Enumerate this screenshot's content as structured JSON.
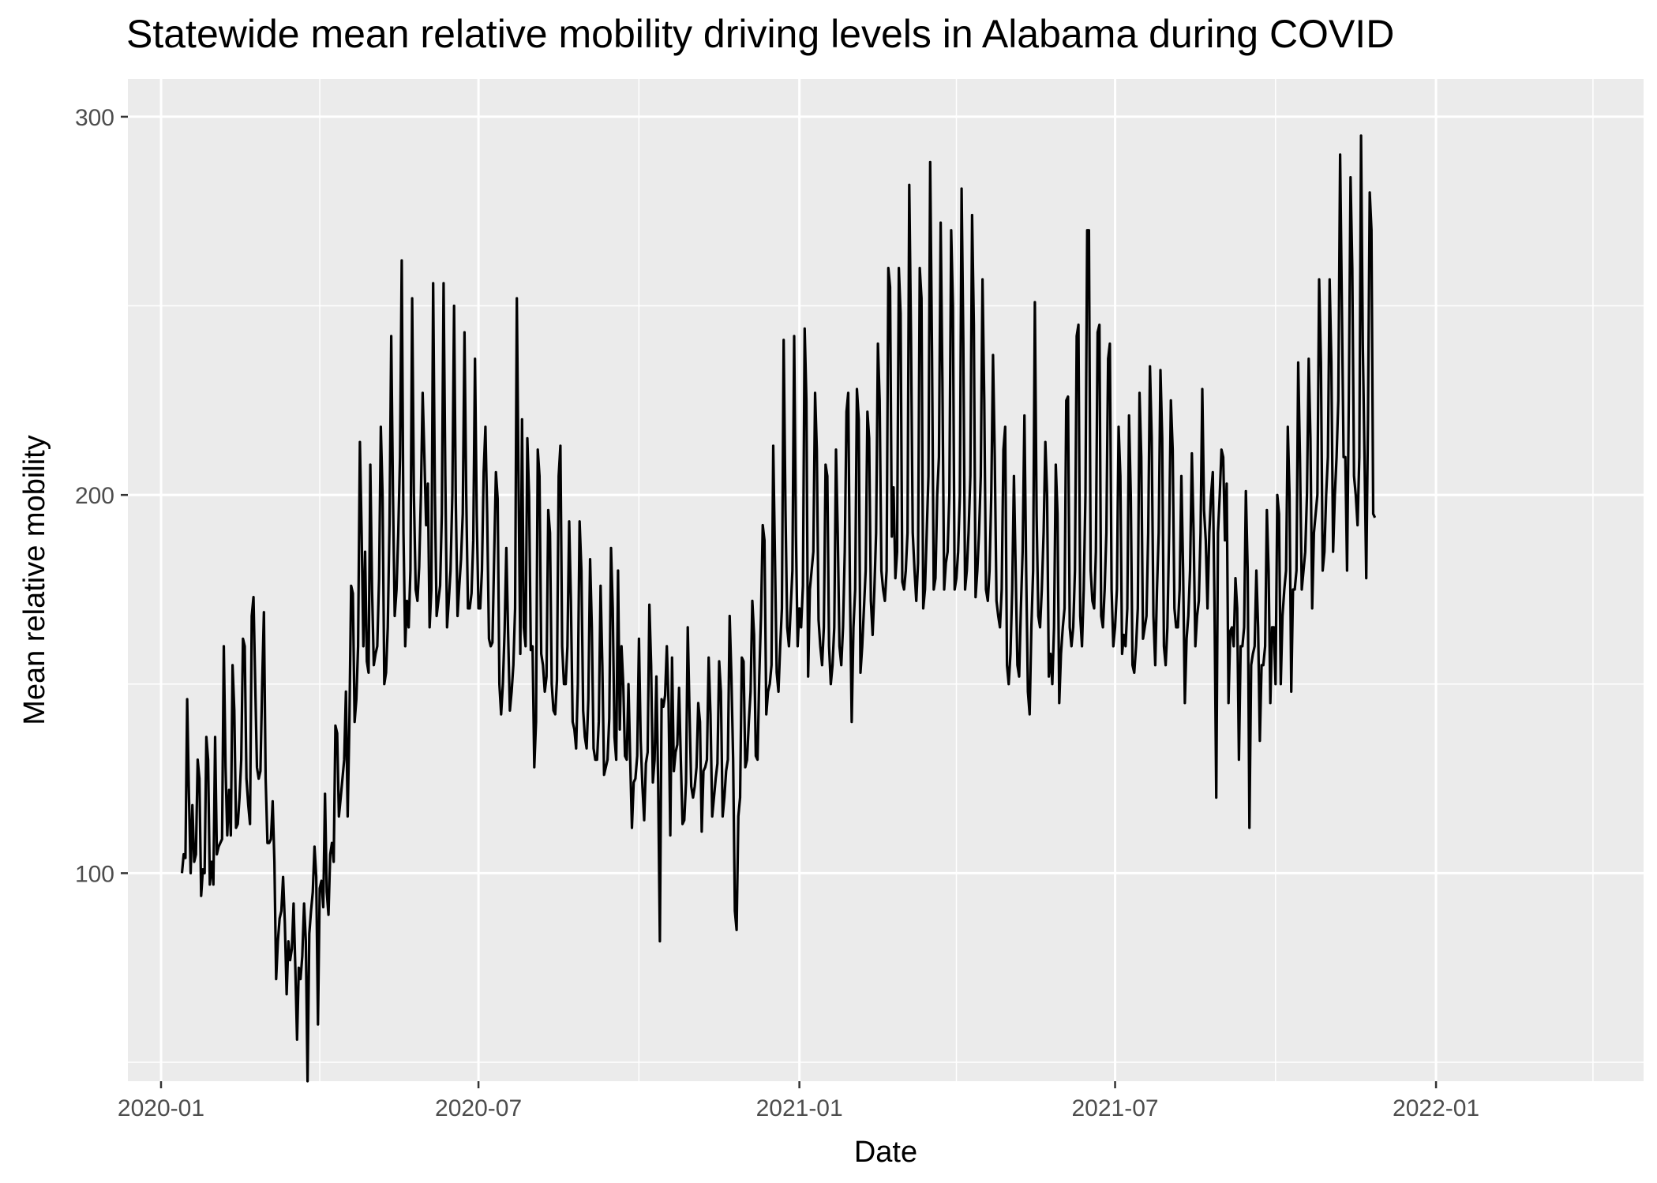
{
  "chart_data": {
    "type": "line",
    "title": "Statewide mean relative mobility driving levels in Alabama during COVID",
    "xlabel": "Date",
    "ylabel": "Mean relative mobility",
    "xlim": [
      "2019-12-13",
      "2022-04-30"
    ],
    "ylim": [
      45,
      310
    ],
    "x_major_ticks": [
      {
        "date": "2020-01-01",
        "label": "2020-01"
      },
      {
        "date": "2020-07-01",
        "label": "2020-07"
      },
      {
        "date": "2021-01-01",
        "label": "2021-01"
      },
      {
        "date": "2021-07-01",
        "label": "2021-07"
      },
      {
        "date": "2022-01-01",
        "label": "2022-01"
      }
    ],
    "x_minor_ticks": [
      "2020-04-01",
      "2020-10-01",
      "2021-04-01",
      "2021-10-01",
      "2022-04-01"
    ],
    "y_major_ticks": [
      100,
      200,
      300
    ],
    "y_minor_ticks": [
      50,
      150,
      250
    ],
    "grid": true,
    "legend": "none",
    "series": [
      {
        "color": "#000000",
        "start_date": "2020-01-13",
        "step": "1 day",
        "values": [
          100,
          105,
          104,
          146,
          121,
          100,
          118,
          103,
          105,
          130,
          125,
          94,
          101,
          100,
          136,
          130,
          97,
          103,
          97,
          136,
          105,
          107,
          108,
          109,
          160,
          128,
          110,
          122,
          110,
          155,
          143,
          112,
          113,
          120,
          130,
          162,
          160,
          125,
          118,
          113,
          168,
          173,
          150,
          128,
          125,
          127,
          150,
          169,
          125,
          108,
          108,
          109,
          119,
          103,
          72,
          82,
          88,
          90,
          99,
          87,
          68,
          82,
          77,
          80,
          92,
          75,
          56,
          75,
          72,
          78,
          92,
          82,
          45,
          84,
          90,
          95,
          107,
          99,
          60,
          96,
          98,
          91,
          121,
          95,
          89,
          105,
          108,
          103,
          139,
          137,
          115,
          120,
          125,
          130,
          148,
          115,
          140,
          176,
          174,
          140,
          146,
          160,
          214,
          190,
          160,
          185,
          156,
          153,
          208,
          175,
          155,
          158,
          160,
          178,
          218,
          200,
          150,
          153,
          165,
          192,
          242,
          200,
          168,
          175,
          190,
          210,
          262,
          190,
          160,
          172,
          165,
          180,
          252,
          200,
          175,
          172,
          181,
          200,
          227,
          210,
          192,
          203,
          165,
          175,
          256,
          200,
          168,
          172,
          176,
          195,
          256,
          205,
          165,
          172,
          180,
          200,
          250,
          198,
          168,
          176,
          183,
          195,
          243,
          200,
          170,
          170,
          174,
          188,
          236,
          195,
          170,
          170,
          180,
          206,
          218,
          195,
          162,
          160,
          161,
          184,
          206,
          199,
          150,
          142,
          150,
          164,
          186,
          163,
          143,
          148,
          155,
          170,
          252,
          202,
          158,
          220,
          165,
          160,
          215,
          200,
          159,
          160,
          128,
          140,
          212,
          205,
          158,
          155,
          148,
          152,
          196,
          190,
          150,
          143,
          142,
          151,
          205,
          213,
          160,
          150,
          150,
          160,
          193,
          172,
          140,
          138,
          133,
          150,
          193,
          180,
          143,
          136,
          133,
          146,
          183,
          165,
          133,
          130,
          130,
          140,
          176,
          155,
          126,
          128,
          130,
          141,
          186,
          170,
          136,
          130,
          180,
          138,
          160,
          150,
          131,
          130,
          150,
          130,
          112,
          124,
          125,
          131,
          162,
          135,
          123,
          114,
          129,
          132,
          171,
          155,
          124,
          130,
          152,
          124,
          82,
          146,
          144,
          147,
          160,
          145,
          110,
          157,
          127,
          132,
          134,
          149,
          130,
          113,
          114,
          124,
          165,
          143,
          123,
          120,
          123,
          128,
          145,
          140,
          111,
          127,
          128,
          130,
          157,
          142,
          115,
          120,
          125,
          129,
          156,
          148,
          115,
          120,
          127,
          130,
          168,
          152,
          130,
          90,
          85,
          115,
          120,
          157,
          156,
          128,
          130,
          140,
          148,
          172,
          163,
          131,
          130,
          152,
          168,
          192,
          188,
          142,
          148,
          150,
          155,
          213,
          183,
          153,
          148,
          160,
          170,
          241,
          196,
          165,
          160,
          170,
          180,
          242,
          190,
          160,
          170,
          165,
          176,
          244,
          225,
          152,
          175,
          180,
          185,
          227,
          212,
          167,
          160,
          155,
          165,
          208,
          205,
          160,
          150,
          155,
          165,
          212,
          190,
          160,
          155,
          165,
          185,
          222,
          227,
          175,
          140,
          165,
          175,
          228,
          220,
          153,
          160,
          170,
          180,
          222,
          215,
          172,
          163,
          175,
          190,
          240,
          225,
          180,
          175,
          172,
          180,
          260,
          255,
          189,
          202,
          178,
          185,
          260,
          248,
          177,
          175,
          180,
          190,
          282,
          242,
          190,
          180,
          172,
          182,
          260,
          252,
          170,
          175,
          190,
          205,
          288,
          238,
          175,
          178,
          200,
          210,
          272,
          230,
          175,
          182,
          185,
          200,
          270,
          250,
          175,
          178,
          185,
          200,
          281,
          240,
          175,
          180,
          190,
          205,
          274,
          245,
          173,
          180,
          190,
          205,
          257,
          225,
          175,
          172,
          180,
          200,
          237,
          210,
          172,
          168,
          165,
          175,
          212,
          218,
          155,
          150,
          158,
          175,
          205,
          180,
          155,
          152,
          170,
          185,
          221,
          180,
          148,
          142,
          165,
          180,
          251,
          195,
          168,
          165,
          175,
          190,
          214,
          200,
          152,
          158,
          150,
          165,
          208,
          195,
          145,
          158,
          165,
          170,
          225,
          226,
          165,
          160,
          165,
          180,
          242,
          245,
          168,
          160,
          175,
          200,
          270,
          270,
          180,
          172,
          170,
          185,
          243,
          245,
          168,
          165,
          175,
          190,
          236,
          240,
          175,
          160,
          165,
          175,
          218,
          205,
          158,
          163,
          160,
          170,
          221,
          200,
          155,
          153,
          160,
          170,
          227,
          210,
          162,
          165,
          168,
          190,
          234,
          215,
          168,
          155,
          175,
          190,
          233,
          215,
          160,
          155,
          165,
          190,
          225,
          212,
          170,
          165,
          165,
          175,
          205,
          180,
          145,
          162,
          168,
          180,
          211,
          190,
          160,
          168,
          172,
          190,
          228,
          196,
          188,
          170,
          190,
          200,
          206,
          170,
          120,
          190,
          200,
          212,
          210,
          188,
          203,
          145,
          164,
          165,
          160,
          178,
          170,
          130,
          160,
          160,
          165,
          201,
          180,
          112,
          155,
          158,
          160,
          180,
          165,
          135,
          155,
          155,
          160,
          196,
          180,
          145,
          165,
          165,
          150,
          200,
          195,
          150,
          168,
          175,
          180,
          218,
          200,
          148,
          175,
          175,
          180,
          235,
          210,
          175,
          180,
          185,
          200,
          236,
          215,
          170,
          190,
          195,
          200,
          257,
          235,
          180,
          185,
          200,
          210,
          257,
          235,
          185,
          200,
          210,
          225,
          290,
          250,
          210,
          210,
          180,
          225,
          284,
          260,
          205,
          200,
          192,
          210,
          295,
          240,
          210,
          178,
          220,
          280,
          270,
          195,
          194
        ]
      }
    ]
  }
}
